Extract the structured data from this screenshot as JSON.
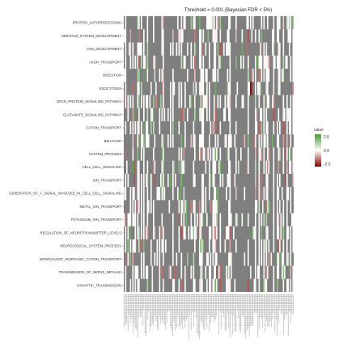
{
  "chart_data": {
    "type": "heatmap",
    "title": "Threshold = 0.001 (Bayesian FDR < 5%)",
    "rows": [
      "PROTEIN_AUTOPROCESSING",
      "NERVOUS_SYSTEM_DEVELOPMENT",
      "CNS_DEVELOPMENT",
      "AXON_TRANSPORT",
      "DIGESTION",
      "EXOCYTOSIS",
      "GPCR_PROTEIN_SIGNALING_PATHWAY",
      "GLUTAMATE_SIGNALING_PATHWAY",
      "CATION_TRANSPORT",
      "BEHAVIOR",
      "SYSTEM_PROCESS",
      "CELL_CELL_SIGNALING",
      "ION_TRANSPORT",
      "GENERATION_OF_A_SIGNAL_INVOLVED_IN_CELL_CELL_SIGNALING",
      "METAL_ION_TRANSPORT",
      "POTASSIUM_ION_TRANSPORT",
      "REGULATION_OF_NEUROTRANSMITTER_LEVELS",
      "NEUROLOGICAL_SYSTEM_PROCESS",
      "MONOVALENT_INORGANIC_CATION_TRANSPORT",
      "TRANSMISSION_OF_NERVE_IMPULSE",
      "SYNAPTIC_TRANSMISSION"
    ],
    "n_columns": 140,
    "na_color": "#7f7f7f",
    "legend": {
      "title": "value",
      "position": "right",
      "ticks": [
        2.5,
        0,
        -2.5
      ],
      "tick_labels": [
        "2.5",
        "0.0",
        "-2.5"
      ],
      "colors": {
        "high": "#4d9a3a",
        "mid": "#ffffff",
        "low": "#8b0000"
      }
    },
    "grid": false
  }
}
